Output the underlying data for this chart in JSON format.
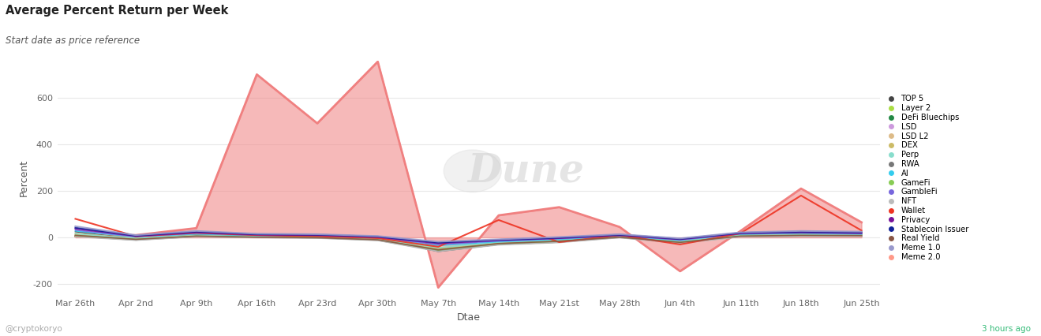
{
  "title": "Average Percent Return per Week",
  "subtitle": "Start date as price reference",
  "xlabel": "Dtae",
  "ylabel": "Percent",
  "xlim_labels": [
    "Mar 26th",
    "Apr 2nd",
    "Apr 9th",
    "Apr 16th",
    "Apr 23rd",
    "Apr 30th",
    "May 7th",
    "May 14th",
    "May 21st",
    "May 28th",
    "Jun 4th",
    "Jun 11th",
    "Jun 18th",
    "Jun 25th"
  ],
  "ylim": [
    -250,
    760
  ],
  "yticks": [
    -200,
    0,
    200,
    400,
    600
  ],
  "bg_color": "#ffffff",
  "watermark": "Dune",
  "footer_left": "@cryptokoryo",
  "footer_right": "3 hours ago",
  "legend_items": [
    {
      "label": "TOP 5",
      "color": "#444444"
    },
    {
      "label": "Layer 2",
      "color": "#aadd44"
    },
    {
      "label": "DeFi Bluechips",
      "color": "#228844"
    },
    {
      "label": "LSD",
      "color": "#cc99dd"
    },
    {
      "label": "LSD L2",
      "color": "#ddbb88"
    },
    {
      "label": "DEX",
      "color": "#ccbb66"
    },
    {
      "label": "Perp",
      "color": "#88ddcc"
    },
    {
      "label": "RWA",
      "color": "#777777"
    },
    {
      "label": "AI",
      "color": "#33ccee"
    },
    {
      "label": "GameFi",
      "color": "#88cc55"
    },
    {
      "label": "GambleFi",
      "color": "#7766dd"
    },
    {
      "label": "NFT",
      "color": "#bbbbbb"
    },
    {
      "label": "Wallet",
      "color": "#ee3322"
    },
    {
      "label": "Privacy",
      "color": "#771199"
    },
    {
      "label": "Stablecoin Issuer",
      "color": "#112299"
    },
    {
      "label": "Real Yield",
      "color": "#885544"
    },
    {
      "label": "Meme 1.0",
      "color": "#9999cc"
    },
    {
      "label": "Meme 2.0",
      "color": "#ff9988"
    }
  ],
  "series": {
    "Meme 2.0": {
      "color": "#f08080",
      "fill": true,
      "fill_alpha": 0.55,
      "lw": 2.0,
      "values": [
        5,
        10,
        40,
        700,
        490,
        755,
        -215,
        95,
        130,
        45,
        -145,
        28,
        210,
        65
      ]
    },
    "TOP 5": {
      "color": "#444444",
      "fill": false,
      "lw": 1.2,
      "values": [
        25,
        -8,
        10,
        5,
        3,
        -5,
        -60,
        -30,
        -20,
        5,
        -25,
        10,
        15,
        12
      ]
    },
    "Layer 2": {
      "color": "#aadd44",
      "fill": false,
      "lw": 1.2,
      "values": [
        15,
        -5,
        8,
        3,
        1,
        -8,
        -50,
        -25,
        -15,
        3,
        -20,
        8,
        12,
        10
      ]
    },
    "DeFi Bluechips": {
      "color": "#228844",
      "fill": false,
      "lw": 1.2,
      "values": [
        8,
        -9,
        5,
        1,
        -1,
        -10,
        -55,
        -28,
        -18,
        1,
        -22,
        5,
        8,
        8
      ]
    },
    "LSD": {
      "color": "#cc99dd",
      "fill": false,
      "lw": 1.2,
      "values": [
        10,
        -7,
        6,
        2,
        0,
        -9,
        -52,
        -26,
        -16,
        2,
        -21,
        6,
        9,
        9
      ]
    },
    "LSD L2": {
      "color": "#ddbb88",
      "fill": false,
      "lw": 1.2,
      "values": [
        18,
        -4,
        9,
        4,
        2,
        -6,
        -45,
        -22,
        -12,
        4,
        -18,
        9,
        13,
        11
      ]
    },
    "DEX": {
      "color": "#ccbb66",
      "fill": false,
      "lw": 1.2,
      "values": [
        12,
        -6,
        7,
        2,
        0,
        -8,
        -48,
        -24,
        -14,
        2,
        -19,
        7,
        10,
        9
      ]
    },
    "Perp": {
      "color": "#88ddcc",
      "fill": false,
      "lw": 1.2,
      "values": [
        16,
        -5,
        8,
        3,
        1,
        -7,
        -44,
        -21,
        -11,
        3,
        -17,
        8,
        11,
        10
      ]
    },
    "RWA": {
      "color": "#777777",
      "fill": false,
      "lw": 1.2,
      "values": [
        5,
        -11,
        4,
        0,
        -2,
        -12,
        -58,
        -30,
        -20,
        0,
        -24,
        4,
        6,
        6
      ]
    },
    "AI": {
      "color": "#33ccee",
      "fill": false,
      "lw": 1.2,
      "values": [
        28,
        2,
        15,
        8,
        6,
        -2,
        -35,
        -18,
        -8,
        6,
        -12,
        14,
        18,
        15
      ]
    },
    "GameFi": {
      "color": "#88cc55",
      "fill": false,
      "lw": 1.2,
      "values": [
        7,
        -8,
        5,
        1,
        -1,
        -11,
        -54,
        -27,
        -17,
        1,
        -21,
        5,
        8,
        7
      ]
    },
    "GambleFi": {
      "color": "#7766dd",
      "fill": false,
      "lw": 1.2,
      "values": [
        32,
        4,
        18,
        10,
        8,
        0,
        -30,
        -15,
        -5,
        8,
        -10,
        16,
        20,
        17
      ]
    },
    "NFT": {
      "color": "#bbbbbb",
      "fill": false,
      "lw": 1.2,
      "values": [
        3,
        -12,
        3,
        -1,
        -3,
        -13,
        -60,
        -32,
        -22,
        -1,
        -26,
        3,
        5,
        5
      ]
    },
    "Wallet": {
      "color": "#ee3322",
      "fill": false,
      "lw": 1.5,
      "values": [
        80,
        5,
        20,
        10,
        5,
        -3,
        -40,
        75,
        -20,
        10,
        -30,
        18,
        180,
        30
      ]
    },
    "Privacy": {
      "color": "#771199",
      "fill": false,
      "lw": 1.5,
      "values": [
        38,
        6,
        22,
        12,
        10,
        2,
        -25,
        -12,
        -3,
        10,
        -8,
        18,
        22,
        19
      ]
    },
    "Stablecoin Issuer": {
      "color": "#112299",
      "fill": false,
      "lw": 1.5,
      "values": [
        42,
        8,
        25,
        14,
        12,
        4,
        -22,
        -10,
        -1,
        12,
        -6,
        20,
        25,
        22
      ]
    },
    "Real Yield": {
      "color": "#885544",
      "fill": false,
      "lw": 1.2,
      "values": [
        9,
        -8,
        6,
        1,
        -1,
        -10,
        -53,
        -26,
        -16,
        1,
        -21,
        6,
        9,
        8
      ]
    },
    "Meme 1.0": {
      "color": "#9999cc",
      "fill": false,
      "lw": 1.5,
      "values": [
        48,
        10,
        28,
        16,
        14,
        6,
        -18,
        -8,
        2,
        14,
        -4,
        22,
        28,
        25
      ]
    }
  }
}
